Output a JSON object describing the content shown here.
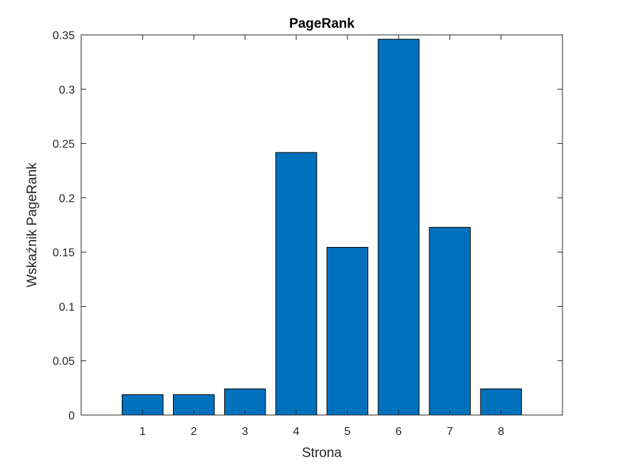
{
  "chart_data": {
    "type": "bar",
    "title": "PageRank",
    "xlabel": "Strona",
    "ylabel": "Wskaźnik PageRank",
    "categories": [
      "1",
      "2",
      "3",
      "4",
      "5",
      "6",
      "7",
      "8"
    ],
    "x": [
      1,
      2,
      3,
      4,
      5,
      6,
      7,
      8
    ],
    "values": [
      0.0188,
      0.0188,
      0.0241,
      0.2417,
      0.1544,
      0.346,
      0.1728,
      0.0241
    ],
    "xlim": [
      -0.2,
      9.2
    ],
    "ylim": [
      0,
      0.35
    ],
    "yticks": [
      "0",
      "0.05",
      "0.1",
      "0.15",
      "0.2",
      "0.25",
      "0.3",
      "0.35"
    ],
    "ytick_values": [
      0,
      0.05,
      0.1,
      0.15,
      0.2,
      0.25,
      0.3,
      0.35
    ],
    "grid": false,
    "bar_color": "#0072BD",
    "bar_edge_color": "#000000"
  }
}
